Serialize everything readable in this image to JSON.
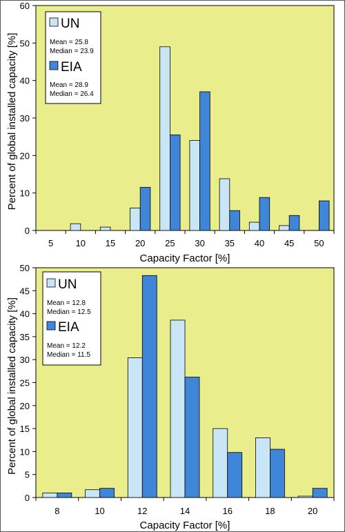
{
  "colors": {
    "plot_bg": "#eaed8c",
    "un_fill": "#c9e6f7",
    "eia_fill": "#3f86d8",
    "axis": "#000000"
  },
  "chart_data": [
    {
      "type": "bar",
      "xlabel": "Capacity Factor [%]",
      "ylabel": "Percent of global installed capacity [%]",
      "ylim": [
        0,
        60
      ],
      "yticks": [
        "0",
        "10",
        "20",
        "30",
        "40",
        "50",
        "60"
      ],
      "categories": [
        "5",
        "10",
        "15",
        "20",
        "25",
        "30",
        "35",
        "40",
        "45",
        "50"
      ],
      "series": [
        {
          "name": "UN",
          "values": [
            0,
            1.8,
            0.9,
            6.0,
            49.0,
            24.0,
            13.8,
            2.2,
            1.3,
            0
          ]
        },
        {
          "name": "EIA",
          "values": [
            0,
            0,
            0,
            11.5,
            25.5,
            37.0,
            5.3,
            8.8,
            4.0,
            7.9
          ]
        }
      ],
      "legend": {
        "un_label": "UN",
        "un_mean": "Mean = 25.8",
        "un_median": "Median = 23.9",
        "eia_label": "EIA",
        "eia_mean": "Mean = 28.9",
        "eia_median": "Median = 26.4"
      }
    },
    {
      "type": "bar",
      "xlabel": "Capacity Factor [%]",
      "ylabel": "Percent of global installed capacity [%]",
      "ylim": [
        0,
        50
      ],
      "yticks": [
        "0",
        "5",
        "10",
        "15",
        "20",
        "25",
        "30",
        "35",
        "40",
        "45",
        "50"
      ],
      "categories": [
        "8",
        "10",
        "12",
        "14",
        "16",
        "18",
        "20"
      ],
      "series": [
        {
          "name": "UN",
          "values": [
            1.0,
            1.7,
            30.4,
            38.6,
            15.0,
            13.0,
            0.3
          ]
        },
        {
          "name": "EIA",
          "values": [
            1.0,
            2.0,
            48.3,
            26.2,
            9.8,
            10.5,
            2.0
          ]
        }
      ],
      "legend": {
        "un_label": "UN",
        "un_mean": "Mean = 12.8",
        "un_median": "Median = 12.5",
        "eia_label": "EIA",
        "eia_mean": "Mean = 12.2",
        "eia_median": "Median = 11.5"
      }
    }
  ]
}
